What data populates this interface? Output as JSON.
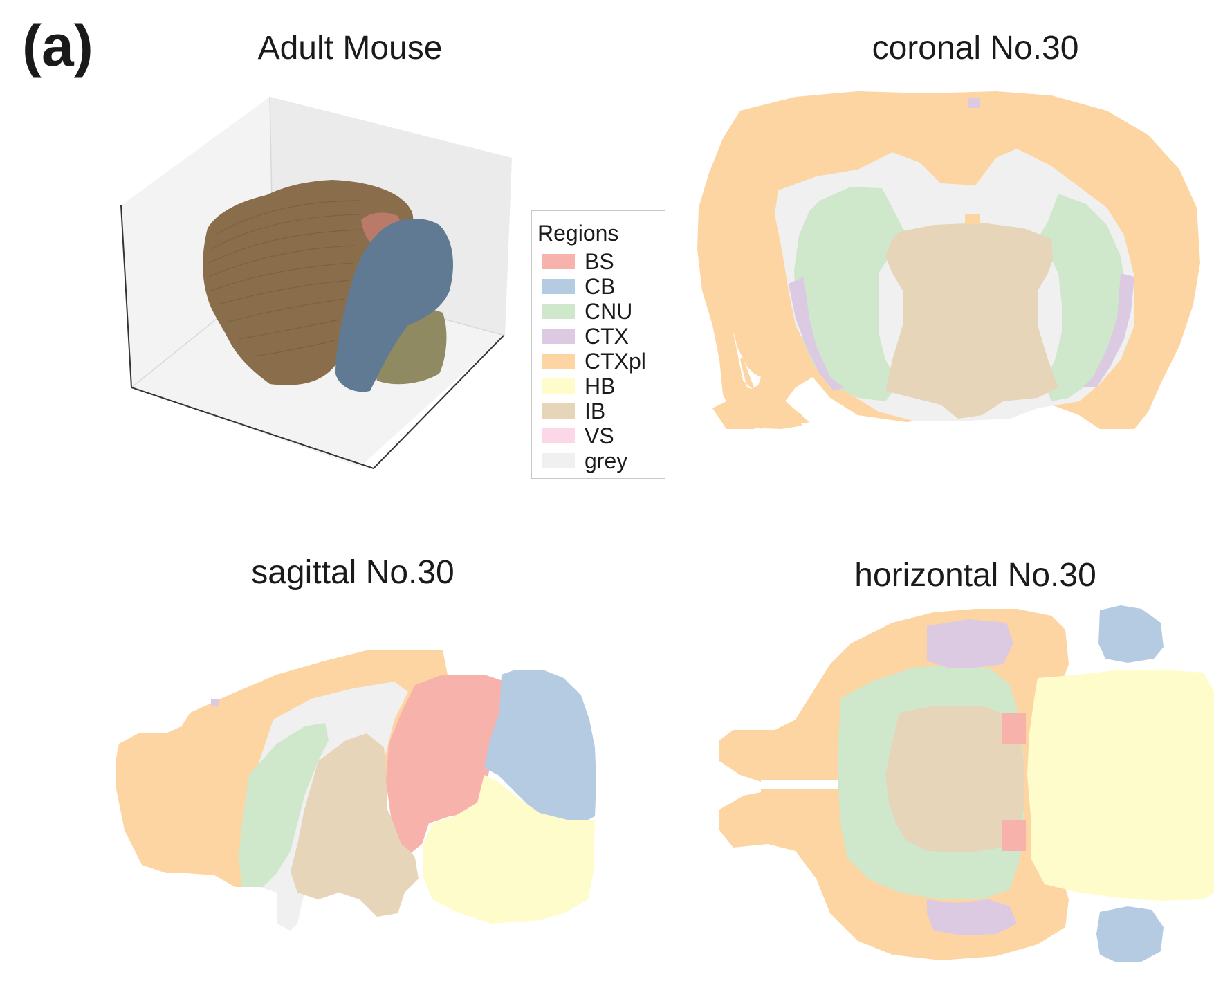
{
  "panel_label": "(a)",
  "titles": {
    "adult_mouse": "Adult Mouse",
    "coronal": "coronal No.30",
    "sagittal": "sagittal No.30",
    "horizontal": "horizontal No.30"
  },
  "legend": {
    "title": "Regions",
    "items": [
      {
        "label": "BS",
        "color": "#f7b3ab"
      },
      {
        "label": "CB",
        "color": "#b4cbe2"
      },
      {
        "label": "CNU",
        "color": "#cfe8cc"
      },
      {
        "label": "CTX",
        "color": "#dcc9e2"
      },
      {
        "label": "CTXpl",
        "color": "#fdd5a3"
      },
      {
        "label": "HB",
        "color": "#fffccb"
      },
      {
        "label": "IB",
        "color": "#e6d5b8"
      },
      {
        "label": "VS",
        "color": "#fbd7e8"
      },
      {
        "label": "grey",
        "color": "#f0f0f0"
      }
    ]
  },
  "colors_3d": {
    "cortex": "#8a6e4b",
    "bs": "#b97a6a",
    "cb": "#5f7a92",
    "hb": "#8f8a62"
  }
}
